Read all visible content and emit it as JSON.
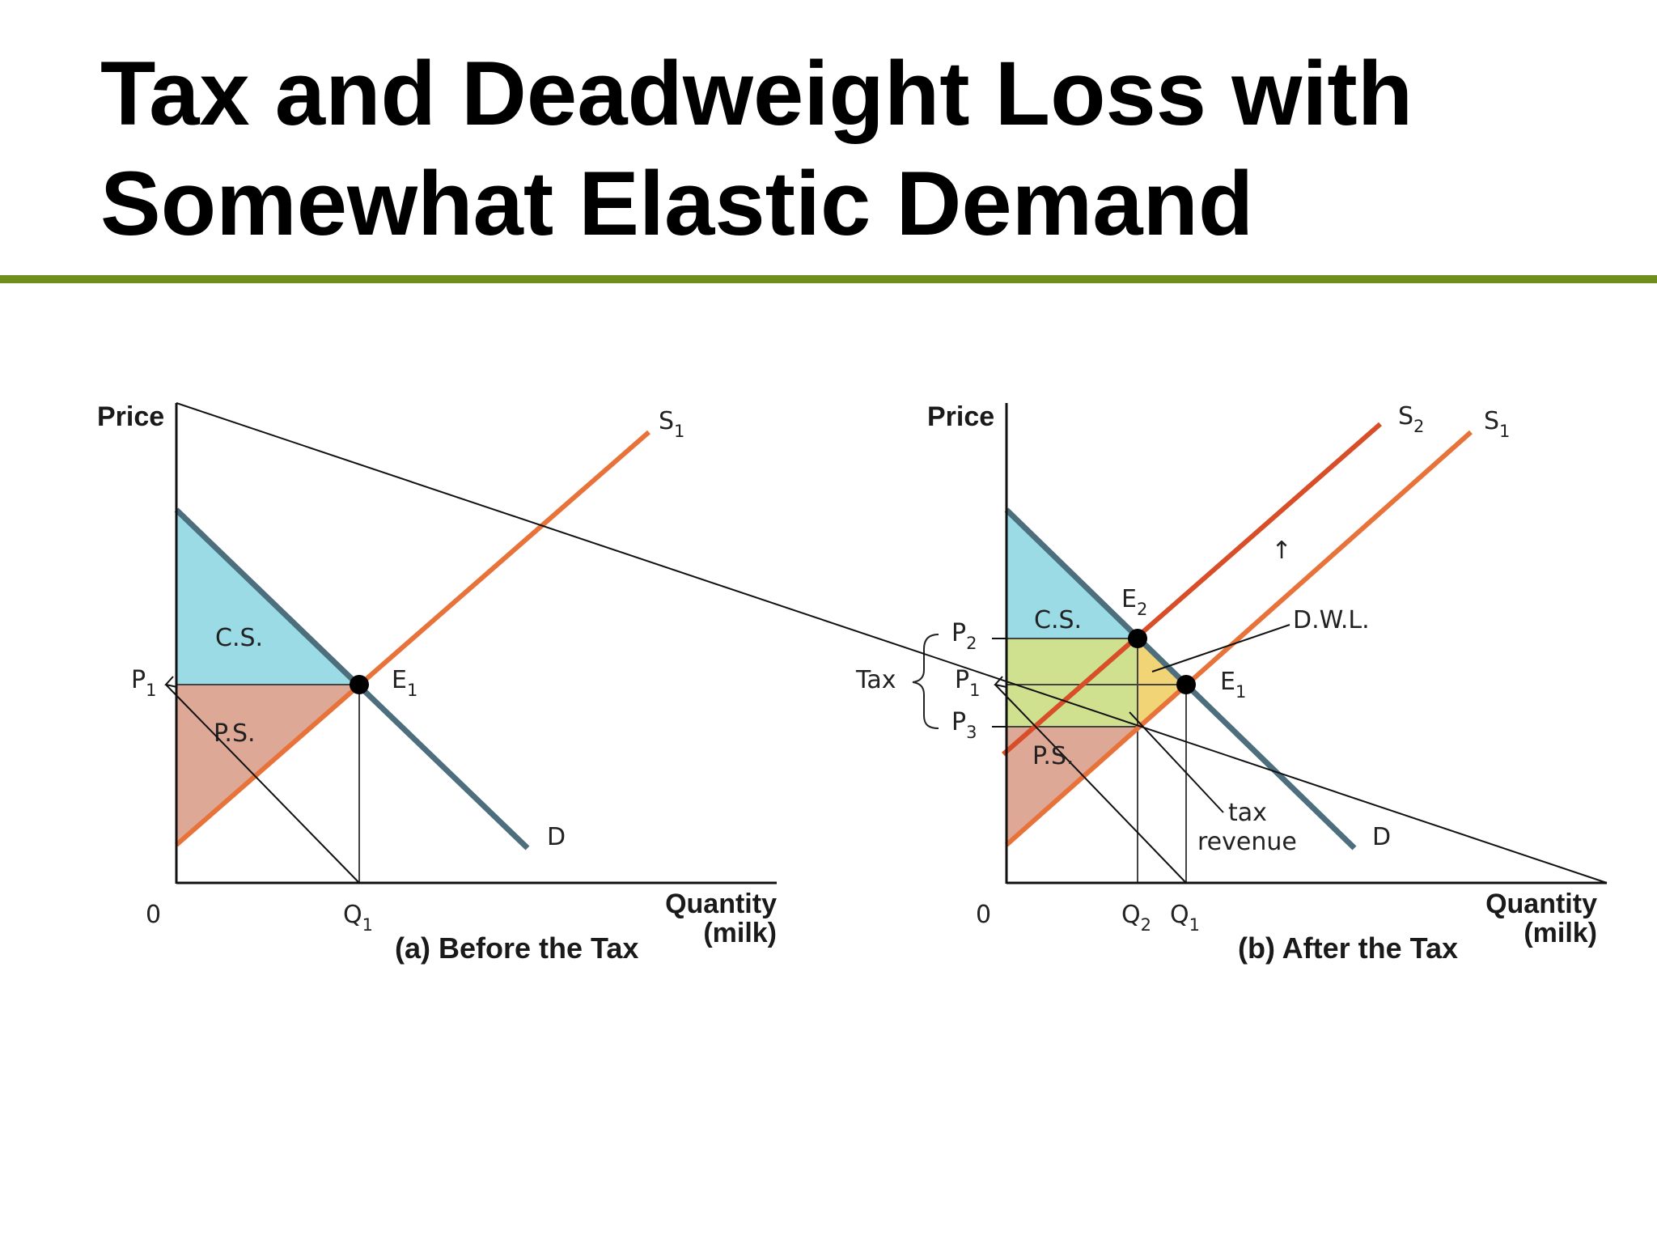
{
  "title": {
    "line1": "Tax and Deadweight Loss with",
    "line2": "Somewhat Elastic Demand"
  },
  "colors": {
    "title_rule": "#6e8e1e",
    "consumer_surplus": "#9bdbe6",
    "producer_surplus": "#dea896",
    "tax_revenue": "#cfe08f",
    "deadweight_loss": "#f0d476",
    "demand_line": "#4d6e7c",
    "supply_s1": "#e8733a",
    "supply_s2": "#d84e28"
  },
  "panel_a": {
    "y_axis_label": "Price",
    "x_axis_label_line1": "Quantity",
    "x_axis_label_line2": "(milk)",
    "origin_label": "0",
    "caption": "(a) Before the Tax",
    "demand_label": "D",
    "supply_label": {
      "base": "S",
      "sub": "1"
    },
    "equilibrium_label": {
      "base": "E",
      "sub": "1"
    },
    "price_label": {
      "base": "P",
      "sub": "1"
    },
    "quantity_label": {
      "base": "Q",
      "sub": "1"
    },
    "cs_label": "C.S.",
    "ps_label": "P.S."
  },
  "panel_b": {
    "y_axis_label": "Price",
    "x_axis_label_line1": "Quantity",
    "x_axis_label_line2": "(milk)",
    "origin_label": "0",
    "caption": "(b) After the Tax",
    "demand_label": "D",
    "supply_s1_label": {
      "base": "S",
      "sub": "1"
    },
    "supply_s2_label": {
      "base": "S",
      "sub": "2"
    },
    "equilibrium_e1_label": {
      "base": "E",
      "sub": "1"
    },
    "equilibrium_e2_label": {
      "base": "E",
      "sub": "2"
    },
    "price_p1_label": {
      "base": "P",
      "sub": "1"
    },
    "price_p2_label": {
      "base": "P",
      "sub": "2"
    },
    "price_p3_label": {
      "base": "P",
      "sub": "3"
    },
    "quantity_q1_label": {
      "base": "Q",
      "sub": "1"
    },
    "quantity_q2_label": {
      "base": "Q",
      "sub": "2"
    },
    "tax_label": "Tax",
    "cs_label": "C.S.",
    "ps_label": "P.S.",
    "dwl_label": "D.W.L.",
    "tax_revenue_line1": "tax",
    "tax_revenue_line2": "revenue",
    "shift_arrow_glyph": "↑"
  }
}
